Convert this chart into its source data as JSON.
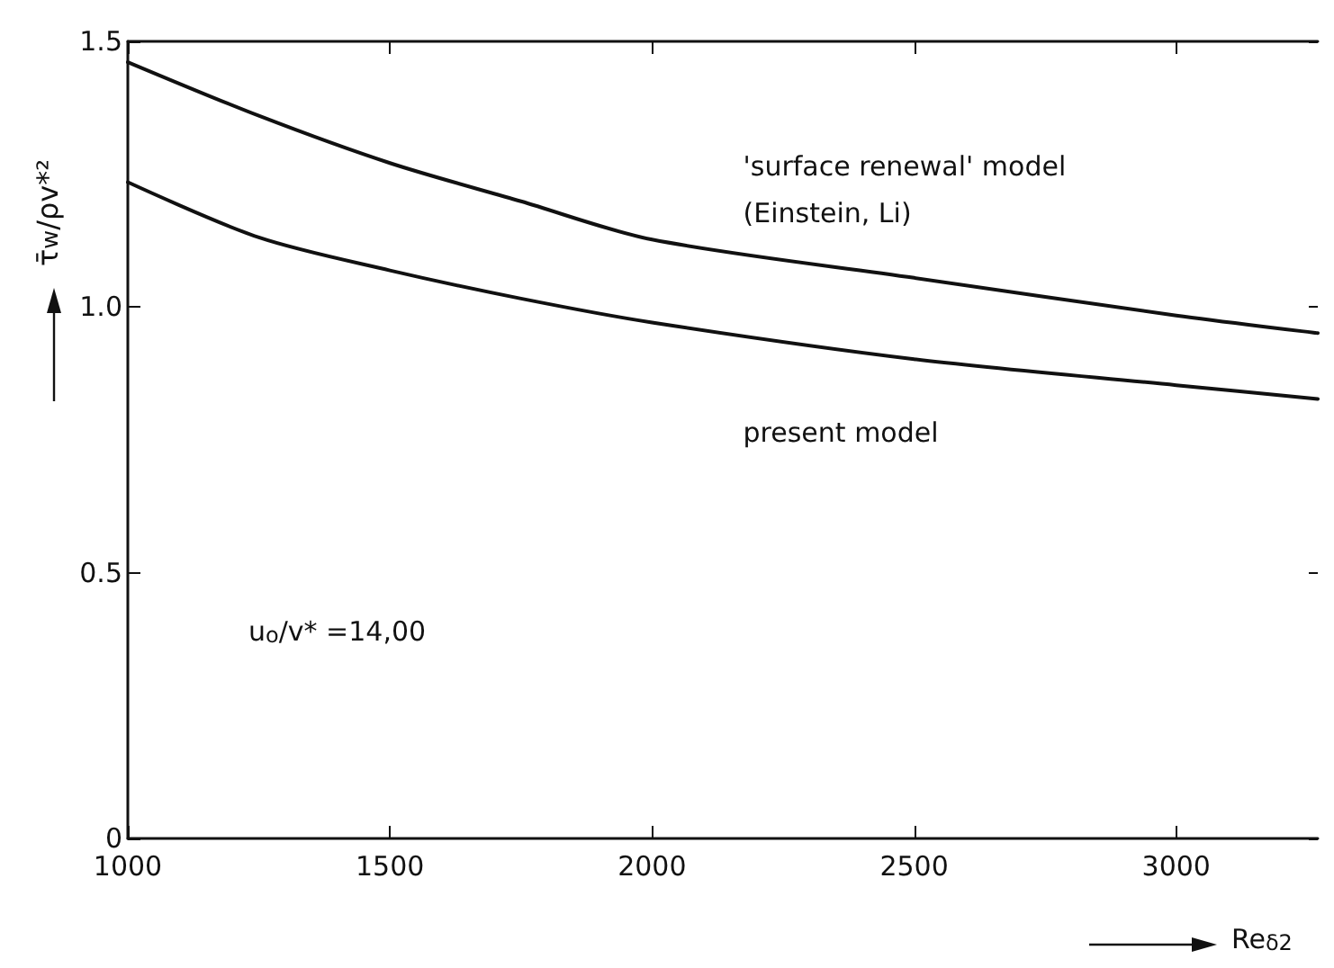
{
  "chart_data": {
    "type": "line",
    "xlabel": "Re$_{δ2}$",
    "ylabel": "τ̄$_{w}$/ρv*²",
    "x": [
      1000,
      1250,
      1500,
      1750,
      2000,
      2500,
      3000,
      3270
    ],
    "series": [
      {
        "name": "'surface renewal' model\n(Einstein, Li)",
        "color": "#111111",
        "values": [
          1.461,
          1.36,
          1.271,
          1.199,
          1.127,
          1.055,
          0.984,
          0.951
        ]
      },
      {
        "name": "present model",
        "color": "#111111",
        "values": [
          1.235,
          1.131,
          1.069,
          1.016,
          0.971,
          0.902,
          0.853,
          0.827
        ]
      }
    ],
    "annotations": [
      "u$_{o}$/v* =14,00"
    ],
    "xlim": [
      1000,
      3270
    ],
    "xticks": [
      1000,
      1500,
      2000,
      2500,
      3000
    ],
    "ylim": [
      0,
      1.5
    ],
    "yticks": [
      0,
      0.5,
      {
        "value": 1.0,
        "label": "1.0"
      },
      {
        "value": 1.5,
        "label": "1.5"
      }
    ],
    "grid": false,
    "legend": false,
    "marker": "none",
    "line_style": "solid"
  }
}
